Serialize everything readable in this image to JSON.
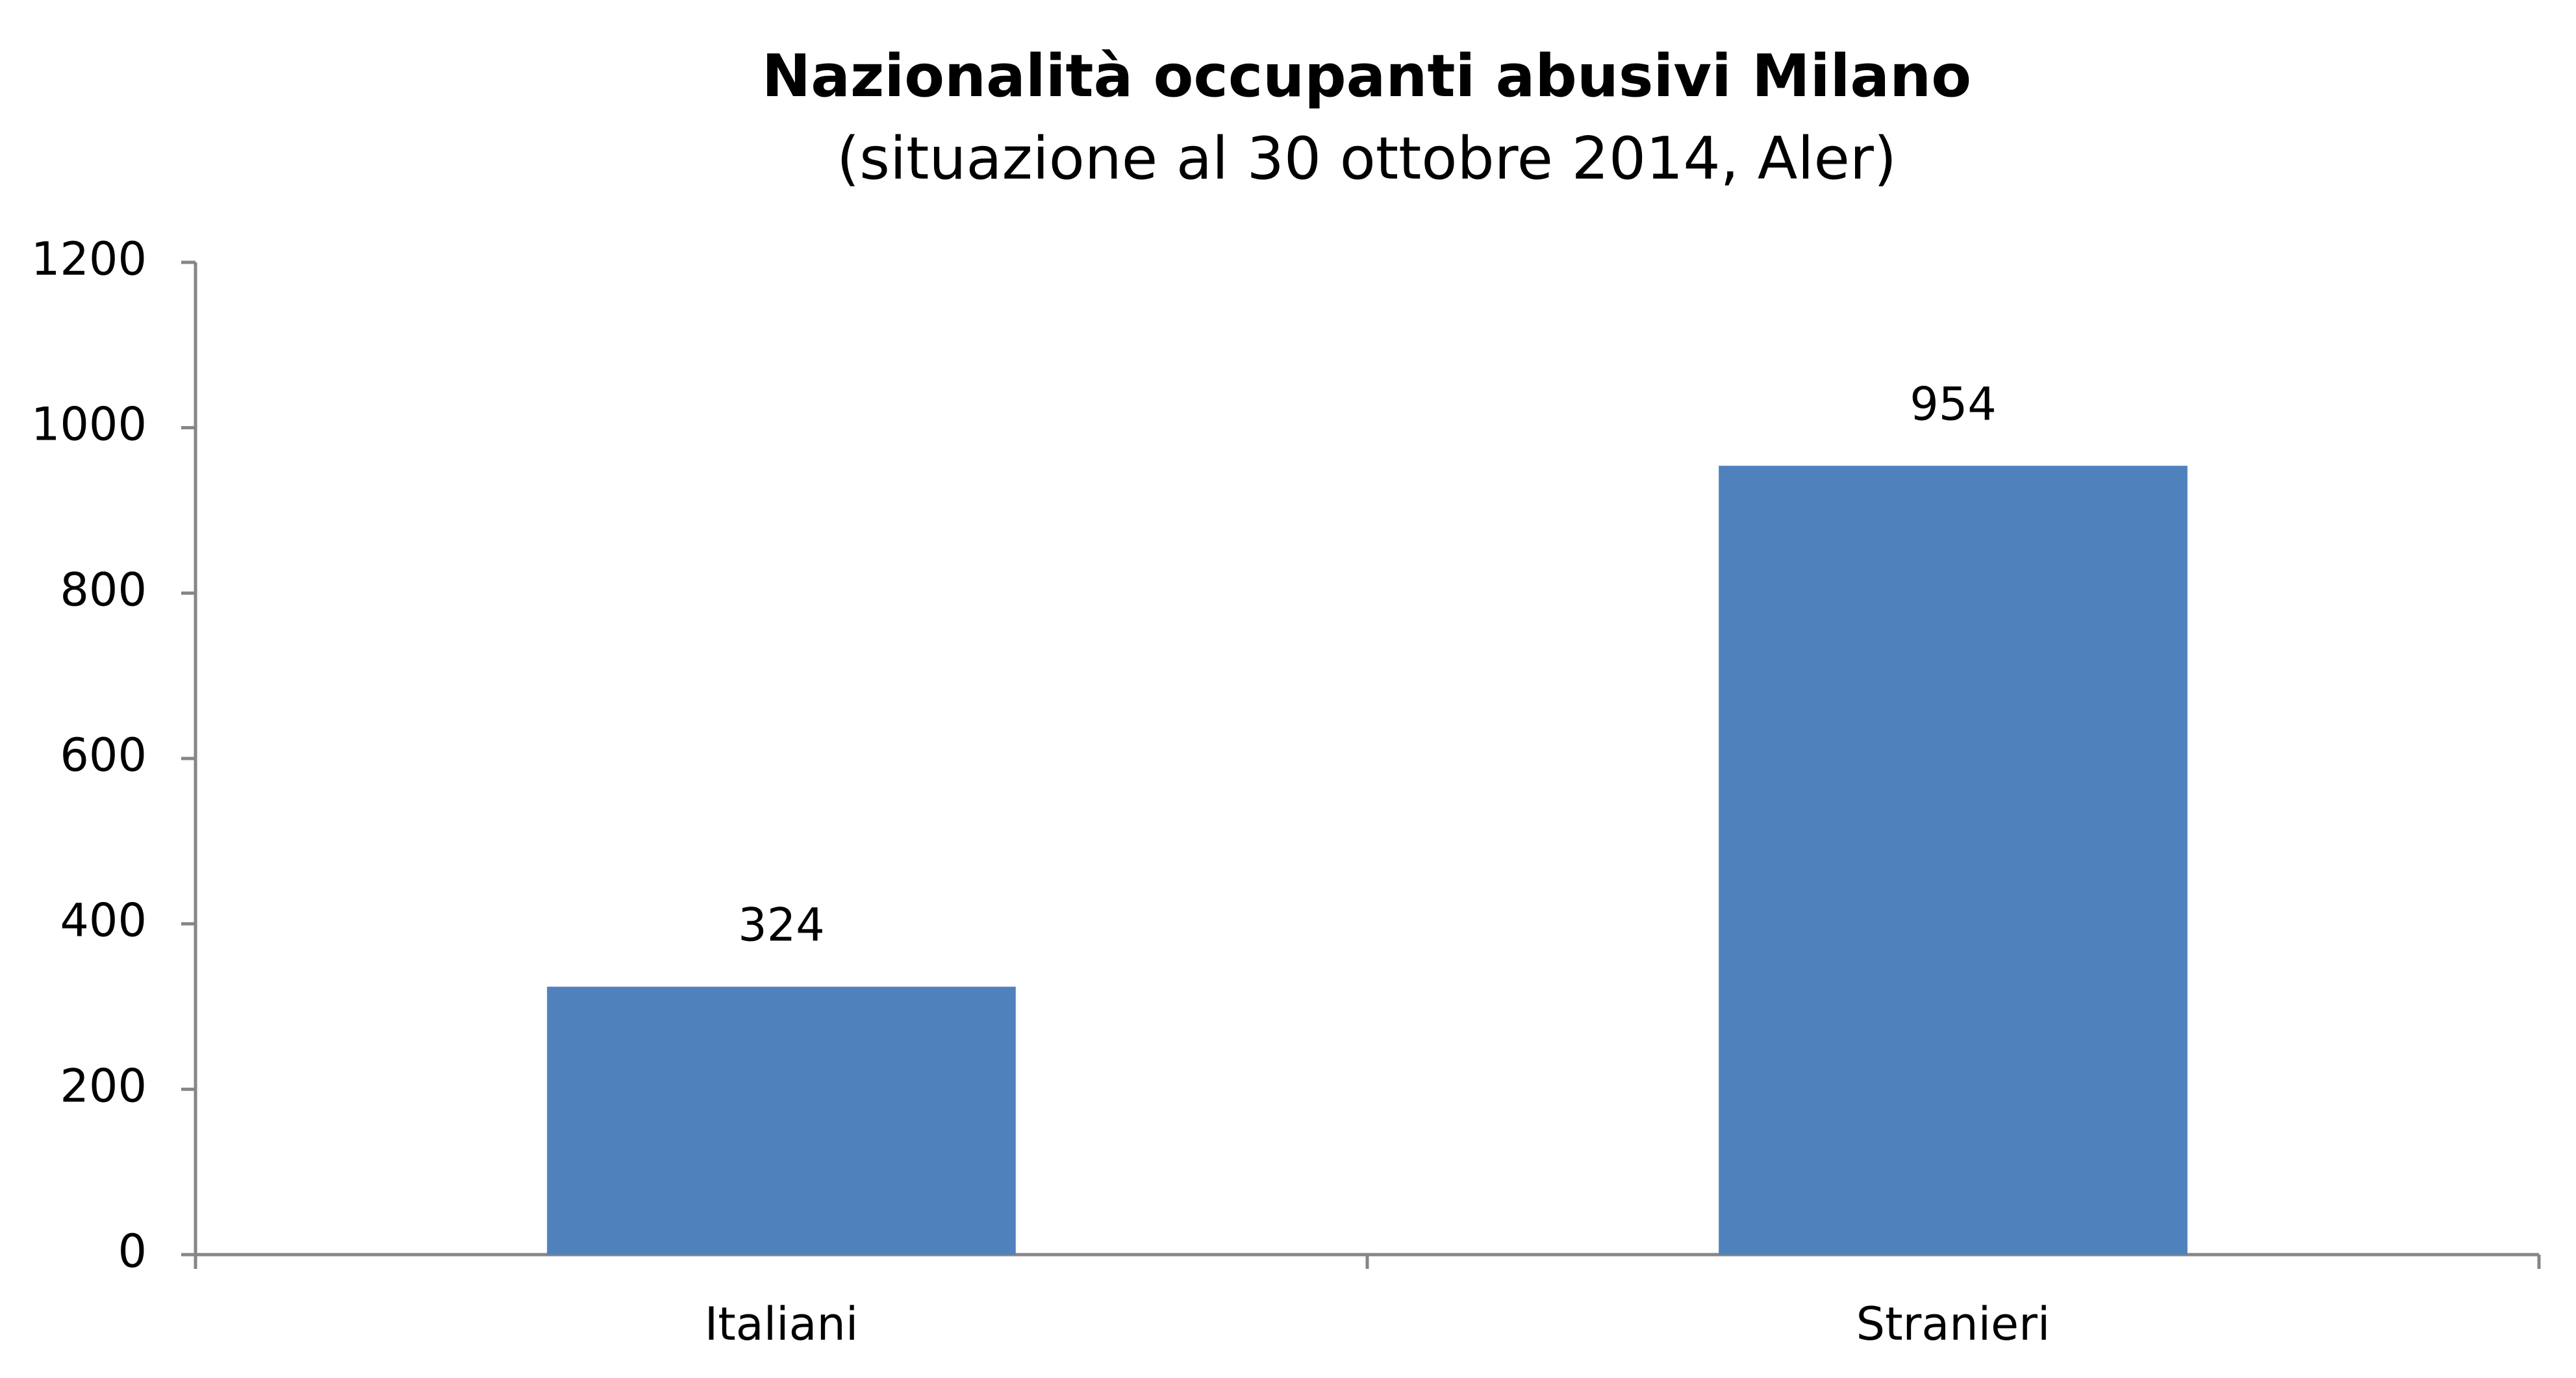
{
  "chart_data": {
    "type": "bar",
    "title": "Nazionalità occupanti abusivi Milano",
    "subtitle": "(situazione al 30 ottobre 2014, Aler)",
    "categories": [
      "Italiani",
      "Stranieri"
    ],
    "values": [
      324,
      954
    ],
    "color": "#4f81bd",
    "ylim": [
      0,
      1200
    ],
    "yticks": [
      0,
      200,
      400,
      600,
      800,
      1000,
      1200
    ],
    "grid": false
  }
}
